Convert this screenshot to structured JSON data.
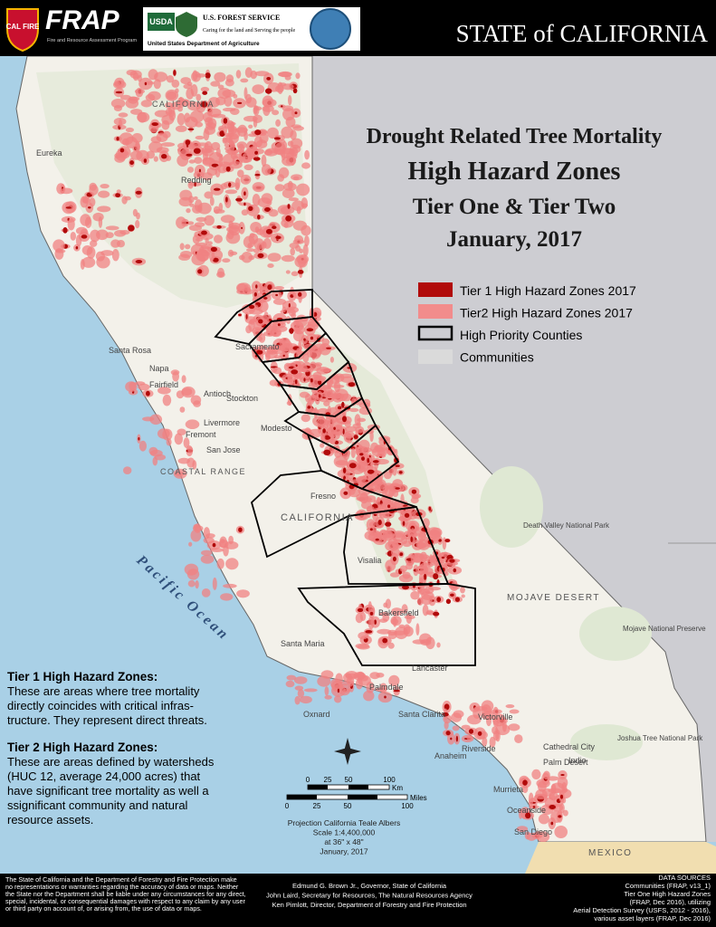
{
  "header": {
    "cal_fire": "CAL FIRE",
    "frap": "FRAP",
    "frap_subtitle": "Fire and Resource Assessment Program",
    "usda": "USDA",
    "forest_service": "U.S. FOREST SERVICE",
    "forest_service_motto": "Caring for the land and Serving the people",
    "usda_full": "United States Department of Agriculture",
    "state": "STATE of CALIFORNIA"
  },
  "title": [
    "Drought Related Tree Mortality",
    "High Hazard Zones",
    "Tier One & Tier Two",
    "January, 2017"
  ],
  "legend": [
    "Tier 1 High Hazard Zones 2017",
    "Tier2 High Hazard Zones 2017",
    "High Priority Counties",
    "Communities"
  ],
  "notes": [
    {
      "heading": "Tier 1 High Hazard Zones:",
      "lines": [
        "These are areas where tree mortality",
        "directly coincides with critical infras-",
        "tructure. They represent direct threats."
      ]
    },
    {
      "heading": "Tier 2 High Hazard Zones:",
      "lines": [
        "These are areas defined by watersheds",
        "(HUC 12, average 24,000 acres) that",
        "have significant tree mortality as well a",
        "ssignificant community and natural",
        "resource assets."
      ]
    }
  ],
  "scale": {
    "km_ticks": [
      "0",
      "25",
      "50",
      "100"
    ],
    "km_unit": "Km",
    "mile_ticks": [
      "0",
      "25",
      "50",
      "100"
    ],
    "mile_unit": "Miles"
  },
  "projection": [
    "Projection California Teale Albers",
    "Scale 1:4,400,000",
    "at 36\" x 48\"",
    "January, 2017"
  ],
  "places": [
    "Eureka",
    "Redding",
    "CALIFORNIA",
    "Santa Rosa",
    "Napa",
    "Fairfield",
    "Sacramento",
    "Antioch",
    "Stockton",
    "Livermore",
    "Fremont",
    "San Jose",
    "Modesto",
    "COASTAL RANGE",
    "Fresno",
    "CALIFORNIA",
    "Visalia",
    "Bakersfield",
    "Santa Maria",
    "Lancaster",
    "Palmdale",
    "Santa Clarita",
    "Oxnard",
    "Victorville",
    "Riverside",
    "Anaheim",
    "Murrieta",
    "Cathedral City",
    "Palm Desert",
    "Indio",
    "Oceanside",
    "San Diego",
    "MOJAVE DESERT",
    "Death Valley National Park",
    "Mojave National Preserve",
    "Joshua Tree National Park",
    "Pacific Ocean",
    "MEXICO"
  ],
  "footer": {
    "disclaimer": [
      "The State of California and the Department of Forestry and Fire Protection make",
      "no representations or warranties regarding the accuracy of data or maps.  Neither",
      "the State nor the Department shall be liable under any circumstances for any direct,",
      "special, incidental, or consequential damages with respect to any claim by any user",
      "or third party on account of, or arising from, the use of data or maps."
    ],
    "credits": [
      "Edmund G. Brown Jr., Governor, State of California",
      "John Laird, Secretary for Resources, The Natural Resources Agency",
      "Ken Pimlott, Director, Department of Forestry and Fire Protection"
    ],
    "sources": [
      "DATA SOURCES",
      "Communities (FRAP, v13_1)",
      "Tier One High Hazard Zones",
      "(FRAP, Dec 2016), utilizing",
      "Aerial Detection Survey (USFS, 2012 - 2016),",
      "various asset layers (FRAP, Dec 2016)"
    ]
  }
}
